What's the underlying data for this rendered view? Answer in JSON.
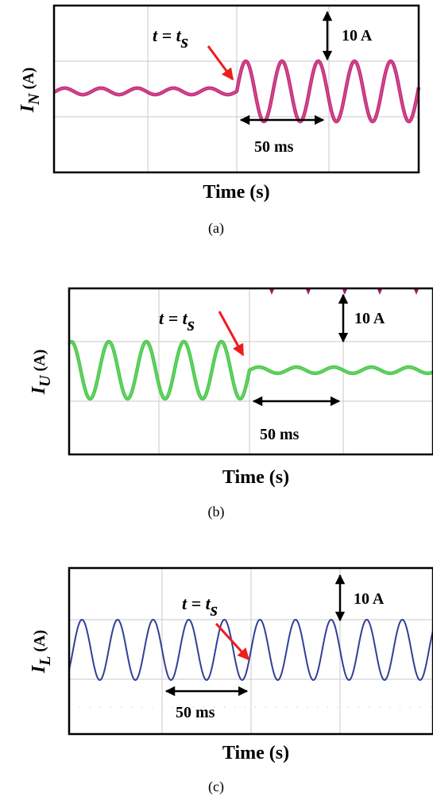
{
  "chart_data": [
    {
      "type": "line",
      "panel_label": "(a)",
      "xlabel": "Time (s)",
      "ylabel_main": "I",
      "ylabel_sub": "N",
      "ylabel_unit": "(A)",
      "switch_label_main": "t = t",
      "switch_label_sub": "s",
      "scale_y_label": "10 A",
      "scale_x_label": "50 ms",
      "series": [
        {
          "color": "#c0186e",
          "before_switch": {
            "amplitude_A": 0.7,
            "cycles_per_50ms": 2.5
          },
          "after_switch": {
            "amplitude_A": 6.5,
            "cycles_per_50ms": 2.5
          }
        }
      ]
    },
    {
      "type": "line",
      "panel_label": "(b)",
      "xlabel": "Time (s)",
      "ylabel_main": "I",
      "ylabel_sub": "U",
      "ylabel_unit": "(A)",
      "switch_label_main": "t = t",
      "switch_label_sub": "s",
      "scale_y_label": "10 A",
      "scale_x_label": "50 ms",
      "series": [
        {
          "color": "#3cc43c",
          "before_switch": {
            "amplitude_A": 6.5,
            "cycles_per_50ms": 2.5
          },
          "after_switch": {
            "amplitude_A": 0.7,
            "cycles_per_50ms": 2.5
          }
        }
      ]
    },
    {
      "type": "line",
      "panel_label": "(c)",
      "xlabel": "Time (s)",
      "ylabel_main": "I",
      "ylabel_sub": "L",
      "ylabel_unit": "(A)",
      "switch_label_main": "t = t",
      "switch_label_sub": "s",
      "scale_y_label": "10 A",
      "scale_x_label": "50 ms",
      "series": [
        {
          "color": "#1c2a8c",
          "before_switch": {
            "amplitude_A": 6.5,
            "cycles_per_50ms": 2.5
          },
          "after_switch": {
            "amplitude_A": 6.5,
            "cycles_per_50ms": 2.5
          }
        }
      ]
    }
  ]
}
